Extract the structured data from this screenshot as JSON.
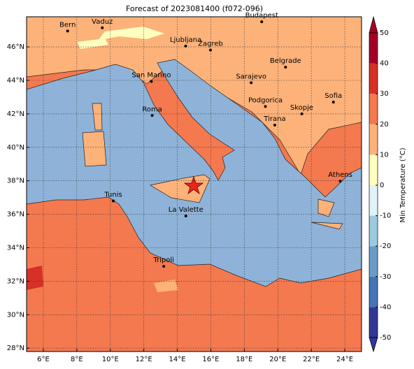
{
  "title": "Forecast of 2023081400 (f072-096)",
  "map": {
    "xlim": [
      5,
      25
    ],
    "ylim": [
      27.8,
      47.8
    ],
    "xticks": [
      {
        "value": 6,
        "label": "6°E"
      },
      {
        "value": 8,
        "label": "8°E"
      },
      {
        "value": 10,
        "label": "10°E"
      },
      {
        "value": 12,
        "label": "12°E"
      },
      {
        "value": 14,
        "label": "14°E"
      },
      {
        "value": 16,
        "label": "16°E"
      },
      {
        "value": 18,
        "label": "18°E"
      },
      {
        "value": 20,
        "label": "20°E"
      },
      {
        "value": 22,
        "label": "22°E"
      },
      {
        "value": 24,
        "label": "24°E"
      }
    ],
    "yticks": [
      {
        "value": 28,
        "label": "28°N"
      },
      {
        "value": 30,
        "label": "30°N"
      },
      {
        "value": 32,
        "label": "32°N"
      },
      {
        "value": 34,
        "label": "34°N"
      },
      {
        "value": 36,
        "label": "36°N"
      },
      {
        "value": 38,
        "label": "38°N"
      },
      {
        "value": 40,
        "label": "40°N"
      },
      {
        "value": 42,
        "label": "42°N"
      },
      {
        "value": 44,
        "label": "44°N"
      },
      {
        "value": 46,
        "label": "46°N"
      }
    ],
    "grid": true,
    "cities": [
      "Bern",
      "Vaduz",
      "Budapest",
      "Ljubljana",
      "Zagreb",
      "San Marino",
      "Belgrade",
      "Sarajevo",
      "Sofia",
      "Podgorica",
      "Skopje",
      "Roma",
      "Tirana",
      "Athens",
      "Tunis",
      "La Valette",
      "Tripoli"
    ]
  },
  "colorbar": {
    "label": "Min Temperature (°C)",
    "lim": [
      -50,
      50
    ],
    "ticks": [
      -50,
      -40,
      -30,
      -20,
      -10,
      0,
      10,
      20,
      30,
      40,
      50
    ],
    "colors": [
      "#313695",
      "#4575b4",
      "#6a9cc8",
      "#9ccae0",
      "#e0f3f8",
      "#ffffbf",
      "#fdb27a",
      "#f4794f",
      "#d73027",
      "#a50026"
    ]
  }
}
